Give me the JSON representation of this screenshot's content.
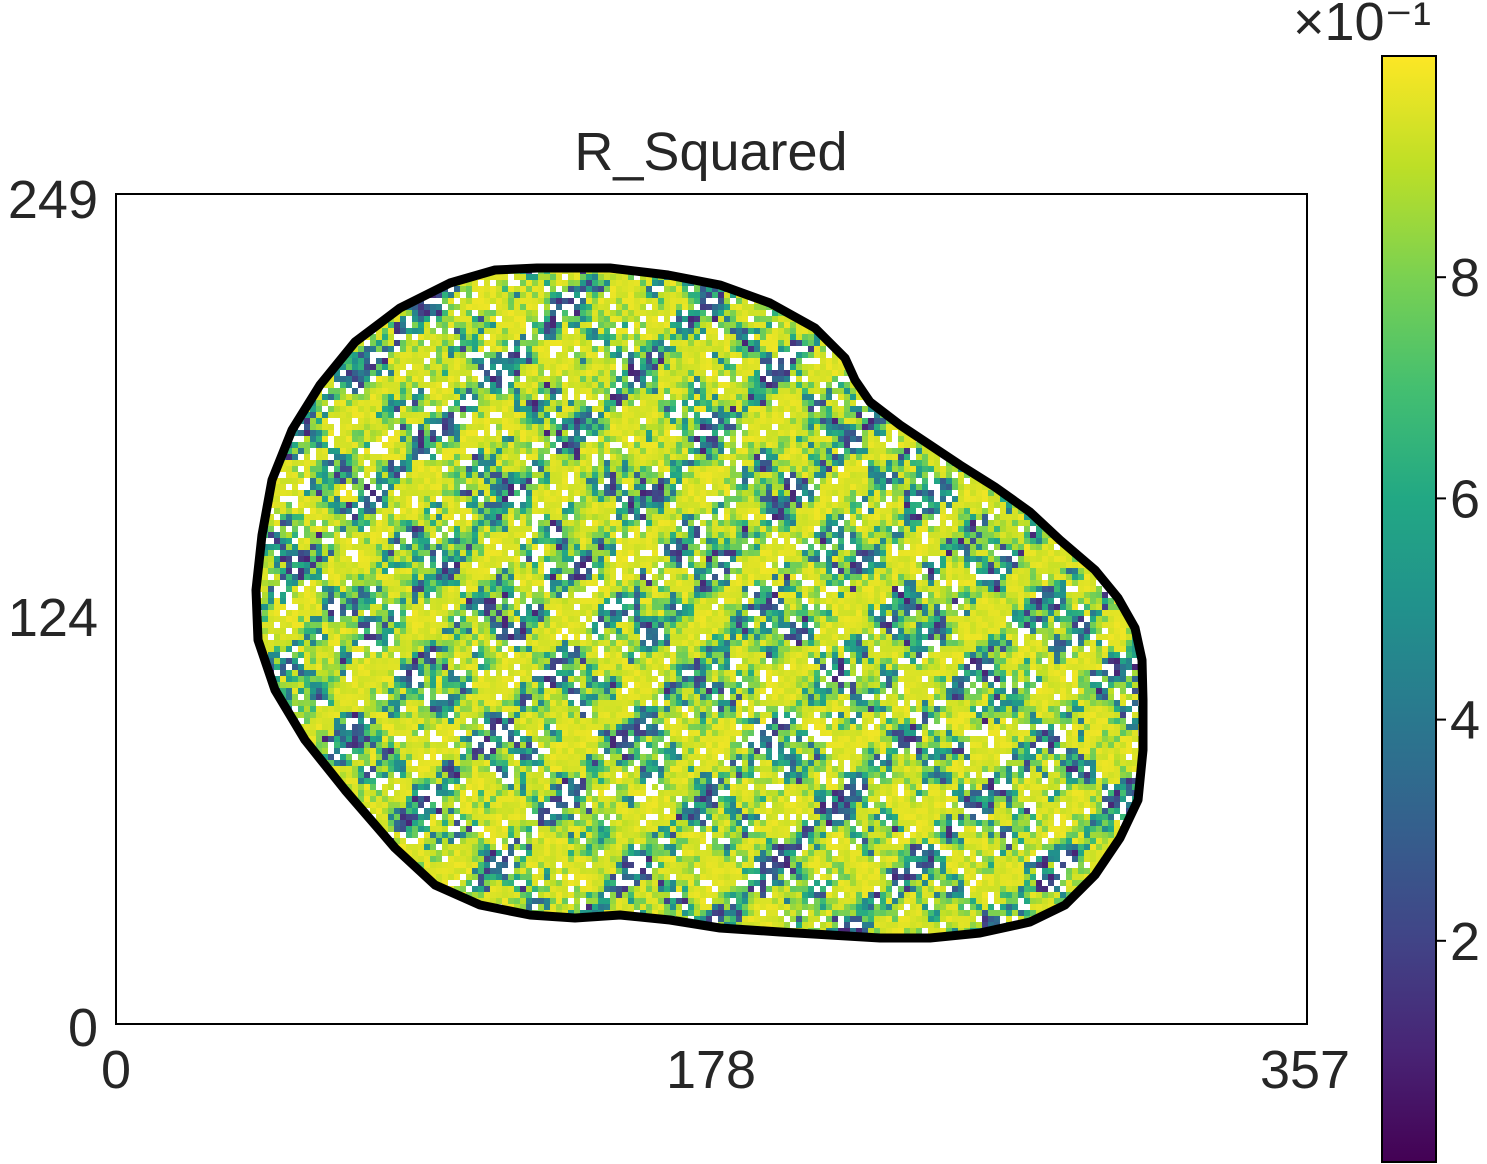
{
  "chart_data": {
    "type": "heatmap",
    "title": "R_Squared",
    "xlabel": "",
    "ylabel": "",
    "x_ticks": [
      "0",
      "178",
      "357"
    ],
    "y_ticks": [
      "0",
      "124",
      "249"
    ],
    "xlim": [
      0,
      357
    ],
    "ylim": [
      0,
      249
    ],
    "grid": false,
    "mask_outline": true,
    "colormap": "viridis",
    "colorbar": {
      "range": [
        0,
        10
      ],
      "ticks": [
        "2",
        "4",
        "6",
        "8"
      ],
      "exponent_label": "×10⁻¹",
      "placement": "right"
    },
    "value_distribution": {
      "description_free": true,
      "dominant_level": 9.5,
      "secondary_levels": [
        8,
        6,
        4.5,
        3,
        1.5
      ],
      "missing_fraction": 0.1
    },
    "colors": {
      "outline": "#000000",
      "frame": "#000000",
      "missing": "#ffffff"
    }
  }
}
